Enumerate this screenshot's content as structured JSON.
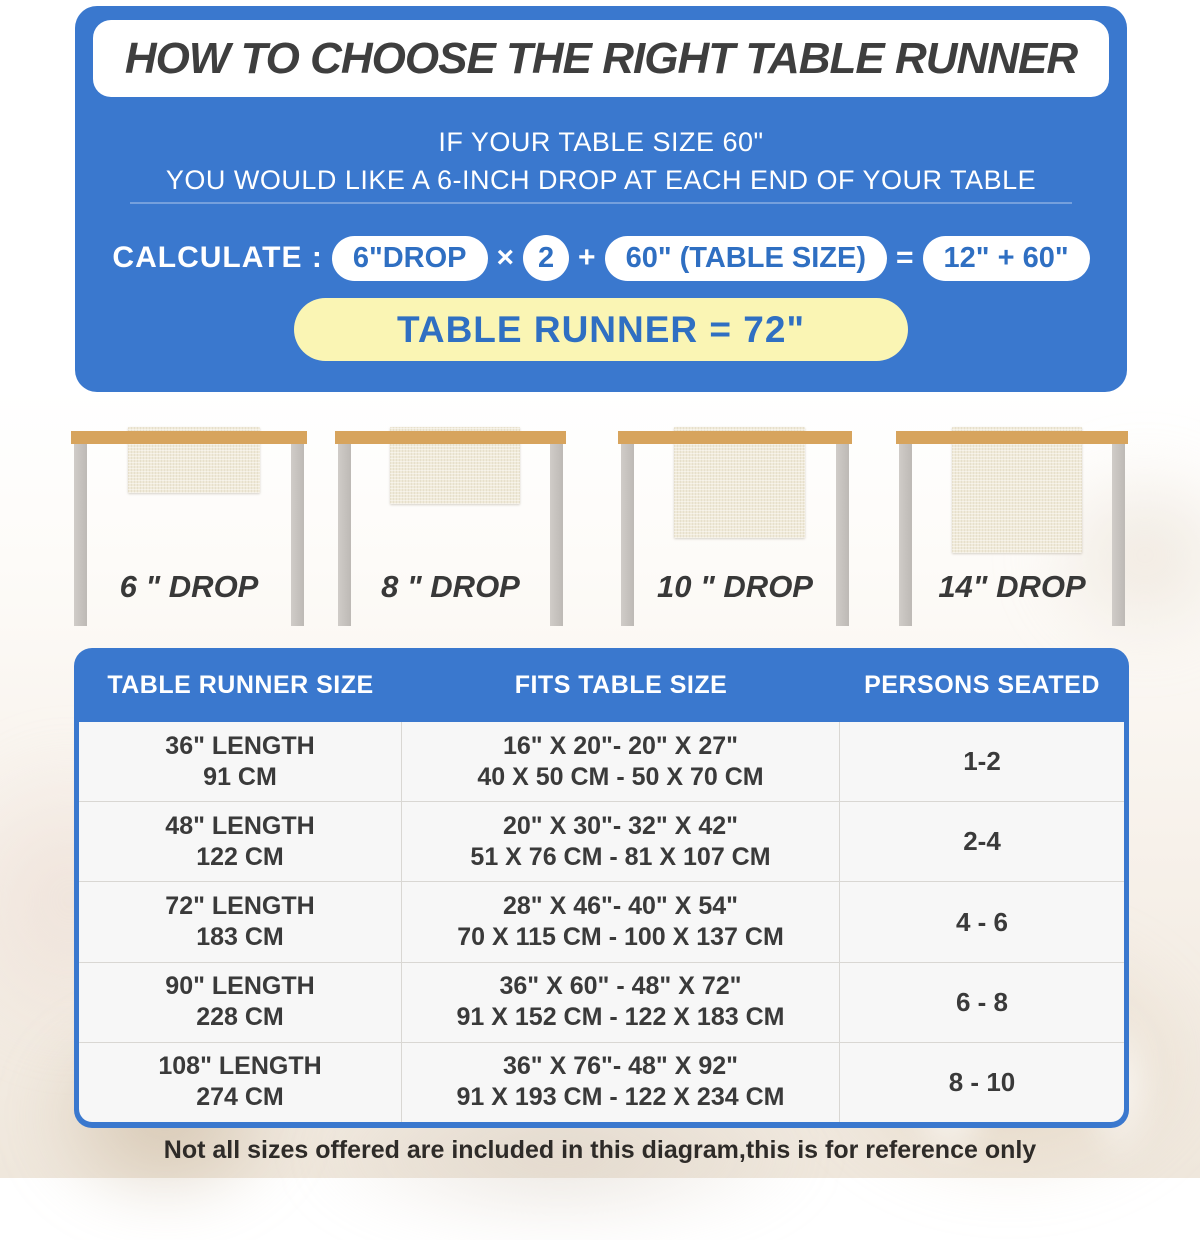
{
  "title": "HOW TO CHOOSE THE RIGHT TABLE RUNNER",
  "intro": {
    "line1": "IF YOUR TABLE SIZE 60\"",
    "line2": "YOU WOULD LIKE A 6-INCH DROP AT EACH END OF YOUR TABLE"
  },
  "calc": {
    "label": "CALCULATE :",
    "drop_pill": "6\"DROP",
    "times": "×",
    "multiplier": "2",
    "plus": "+",
    "table_pill": "60\" (TABLE SIZE)",
    "equals": "=",
    "sum_pill": "12\" + 60\"",
    "result": "TABLE RUNNER = 72\""
  },
  "drops": [
    {
      "label": "6 \" DROP"
    },
    {
      "label": "8 \" DROP"
    },
    {
      "label": "10 \" DROP"
    },
    {
      "label": "14\" DROP"
    }
  ],
  "size_chart": {
    "columns": [
      "TABLE RUNNER SIZE",
      "FITS TABLE SIZE",
      "PERSONS SEATED"
    ],
    "rows": [
      {
        "size": [
          "36\" LENGTH",
          "91 CM"
        ],
        "fits": [
          "16\" X 20\"- 20\" X 27\"",
          "40 X 50 CM - 50 X 70 CM"
        ],
        "persons": "1-2"
      },
      {
        "size": [
          "48\" LENGTH",
          "122 CM"
        ],
        "fits": [
          "20\" X 30\"- 32\" X 42\"",
          "51 X 76 CM - 81 X 107 CM"
        ],
        "persons": "2-4"
      },
      {
        "size": [
          "72\" LENGTH",
          "183 CM"
        ],
        "fits": [
          "28\" X 46\"- 40\" X 54\"",
          "70 X 115 CM - 100 X 137 CM"
        ],
        "persons": "4 - 6"
      },
      {
        "size": [
          "90\" LENGTH",
          "228 CM"
        ],
        "fits": [
          "36\" X 60\" - 48\" X 72\"",
          "91 X 152 CM - 122 X 183 CM"
        ],
        "persons": "6 - 8"
      },
      {
        "size": [
          "108\" LENGTH",
          "274 CM"
        ],
        "fits": [
          "36\" X 76\"- 48\" X 92\"",
          "91 X 193 CM - 122 X 234 CM"
        ],
        "persons": "8 - 10"
      }
    ]
  },
  "footer_note": "Not all sizes offered are included in this diagram,this is for reference only",
  "colors": {
    "blue": "#3a78ce",
    "blue_text": "#2f6fc2",
    "yellow_pill": "#faf5b4",
    "title_dark": "#3e3e3e",
    "wood": "#d7a45d",
    "leg_gray": "#c6c2be",
    "runner_cream": "#f0ead9"
  }
}
